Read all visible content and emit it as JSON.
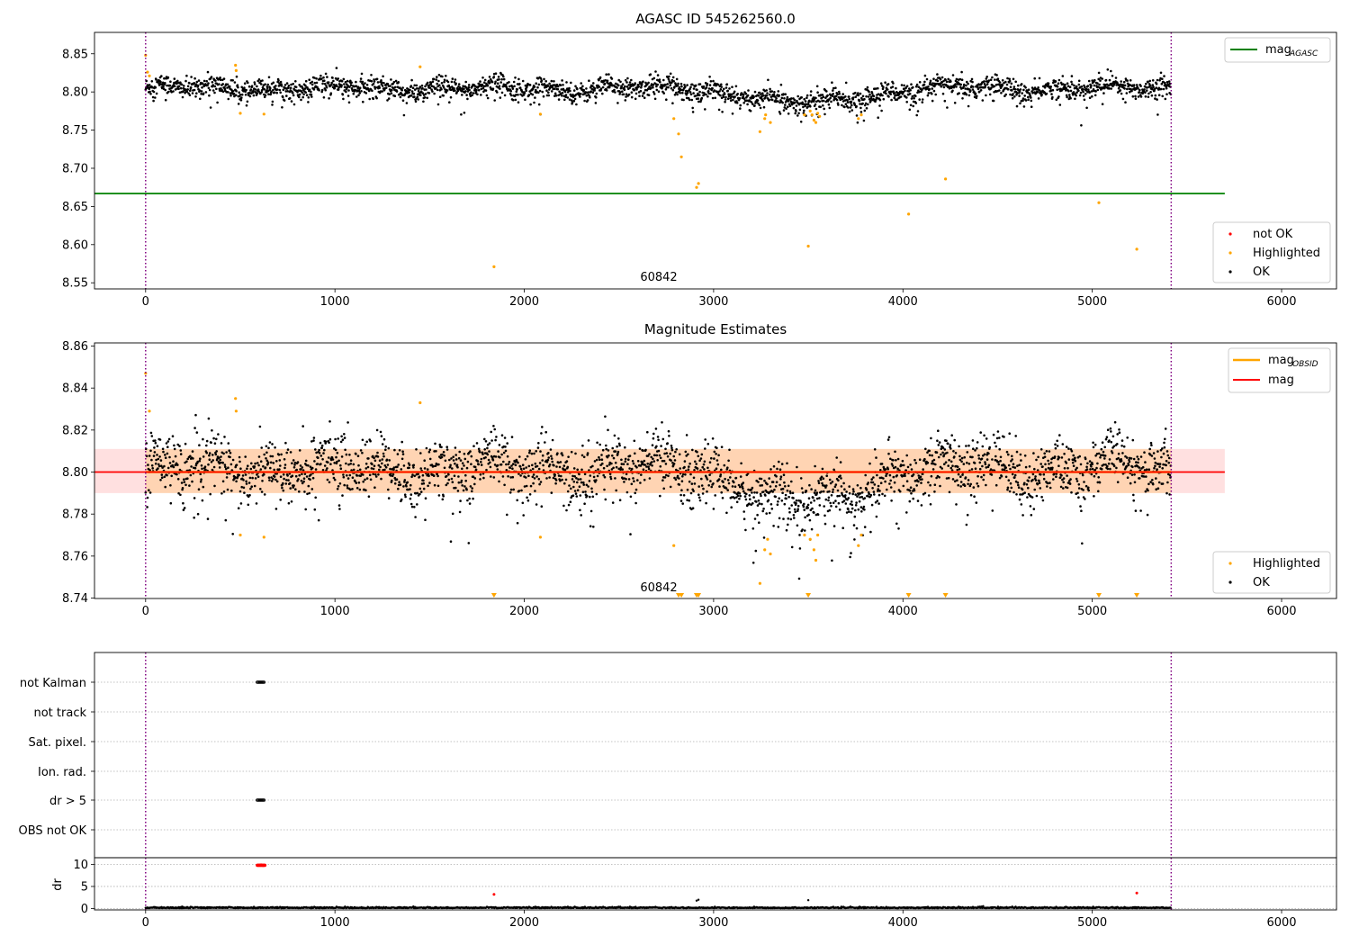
{
  "chart_data": [
    {
      "type": "scatter",
      "title": "AGASC ID 545262560.0",
      "xlim": [
        -270,
        6290
      ],
      "ylim": [
        8.542,
        8.878
      ],
      "x_ticks": [
        0,
        1000,
        2000,
        3000,
        4000,
        5000,
        6000
      ],
      "y_ticks": [
        8.55,
        8.6,
        8.65,
        8.7,
        8.75,
        8.8,
        8.85
      ],
      "y_tick_labels": [
        "8.55",
        "8.60",
        "8.65",
        "8.70",
        "8.75",
        "8.80",
        "8.85"
      ],
      "vlines": [
        0,
        5417
      ],
      "annotation": "60842",
      "annotation_x": 2700,
      "hline": {
        "y": 8.667,
        "color": "#008000"
      },
      "legend_upper": {
        "name": "mag",
        "subscript": "AGASC",
        "color": "#008000"
      },
      "legend_lower": [
        {
          "name": "not OK",
          "color": "#ff0000"
        },
        {
          "name": "Highlighted",
          "color": "#ffa500"
        },
        {
          "name": "OK",
          "color": "#000000"
        }
      ],
      "ok_band": {
        "x_range": [
          0,
          5417
        ],
        "base": 8.805,
        "dips": [
          [
            3500,
            0.02,
            350
          ]
        ]
      },
      "highlighted_points": [
        [
          0,
          8.848
        ],
        [
          10,
          8.826
        ],
        [
          20,
          8.821
        ],
        [
          475,
          8.835
        ],
        [
          478,
          8.828
        ],
        [
          500,
          8.772
        ],
        [
          625,
          8.771
        ],
        [
          1450,
          8.833
        ],
        [
          1840,
          8.571
        ],
        [
          2085,
          8.771
        ],
        [
          2790,
          8.765
        ],
        [
          2815,
          8.745
        ],
        [
          2830,
          8.715
        ],
        [
          2910,
          8.675
        ],
        [
          2920,
          8.68
        ],
        [
          3245,
          8.748
        ],
        [
          3270,
          8.765
        ],
        [
          3275,
          8.77
        ],
        [
          3300,
          8.76
        ],
        [
          3480,
          8.77
        ],
        [
          3500,
          8.598
        ],
        [
          3510,
          8.775
        ],
        [
          3520,
          8.77
        ],
        [
          3530,
          8.763
        ],
        [
          3540,
          8.76
        ],
        [
          3550,
          8.772
        ],
        [
          3560,
          8.768
        ],
        [
          3765,
          8.765
        ],
        [
          3780,
          8.77
        ],
        [
          4030,
          8.64
        ],
        [
          4225,
          8.686
        ],
        [
          5035,
          8.655
        ],
        [
          5235,
          8.594
        ]
      ]
    },
    {
      "type": "scatter",
      "title": "Magnitude Estimates",
      "xlim": [
        -270,
        6290
      ],
      "ylim": [
        8.7398,
        8.8615
      ],
      "x_ticks": [
        0,
        1000,
        2000,
        3000,
        4000,
        5000,
        6000
      ],
      "y_ticks": [
        8.74,
        8.76,
        8.78,
        8.8,
        8.82,
        8.84,
        8.86
      ],
      "y_tick_labels": [
        "8.74",
        "8.76",
        "8.78",
        "8.80",
        "8.82",
        "8.84",
        "8.86"
      ],
      "vlines": [
        0,
        5417
      ],
      "annotation": "60842",
      "annotation_x": 2700,
      "hline": {
        "y": 8.8,
        "color": "#ff0000"
      },
      "mag_obsid_line": {
        "y": 8.8,
        "x_range": [
          0,
          5417
        ],
        "color": "#ffa500"
      },
      "band": {
        "y_range": [
          8.79,
          8.811
        ],
        "x_range": [
          -270,
          5700
        ],
        "color": "#ff0000"
      },
      "band_obsid": {
        "y_range": [
          8.79,
          8.811
        ],
        "x_range": [
          0,
          5417
        ],
        "color": "#ffa500"
      },
      "legend_upper": [
        {
          "name": "mag",
          "subscript": "OBSID",
          "color": "#ffa500"
        },
        {
          "name": "mag",
          "subscript": "",
          "color": "#ff0000"
        }
      ],
      "legend_lower": [
        {
          "name": "Highlighted",
          "color": "#ffa500"
        },
        {
          "name": "OK",
          "color": "#000000"
        }
      ],
      "ok_band": {
        "x_range": [
          0,
          5417
        ],
        "base": 8.802,
        "dips": [
          [
            3500,
            0.018,
            350
          ]
        ]
      },
      "highlighted_points": [
        [
          0,
          8.847
        ],
        [
          20,
          8.829
        ],
        [
          475,
          8.835
        ],
        [
          478,
          8.829
        ],
        [
          500,
          8.77
        ],
        [
          625,
          8.769
        ],
        [
          1450,
          8.833
        ],
        [
          2085,
          8.769
        ],
        [
          2790,
          8.765
        ],
        [
          3245,
          8.747
        ],
        [
          3270,
          8.763
        ],
        [
          3285,
          8.768
        ],
        [
          3300,
          8.761
        ],
        [
          3480,
          8.77
        ],
        [
          3510,
          8.768
        ],
        [
          3530,
          8.763
        ],
        [
          3540,
          8.758
        ],
        [
          3550,
          8.77
        ],
        [
          3765,
          8.765
        ],
        [
          3780,
          8.77
        ]
      ],
      "clipped_points_x": [
        1840,
        2815,
        2830,
        2910,
        2920,
        3500,
        4030,
        4225,
        5035,
        5235
      ]
    },
    {
      "type": "scatter",
      "title": "",
      "xlim": [
        -270,
        6290
      ],
      "x_ticks": [
        0,
        1000,
        2000,
        3000,
        4000,
        5000,
        6000
      ],
      "vlines": [
        0,
        5417
      ],
      "categories": [
        "not Kalman",
        "not track",
        "Sat. pixel.",
        "Ion. rad.",
        "dr > 5",
        "OBS not OK"
      ],
      "flag_points": [
        {
          "category": "not Kalman",
          "x_range": [
            590,
            625
          ]
        },
        {
          "category": "dr > 5",
          "x_range": [
            590,
            625
          ]
        }
      ]
    },
    {
      "type": "scatter",
      "title": "",
      "xlim": [
        -270,
        6290
      ],
      "ylim": [
        -0.3,
        11.5
      ],
      "ylabel": "dr",
      "y_ticks": [
        0,
        5,
        10
      ],
      "y_tick_labels": [
        "0",
        "5",
        "10"
      ],
      "x_ticks": [
        0,
        1000,
        2000,
        3000,
        4000,
        5000,
        6000
      ],
      "vlines": [
        0,
        5417
      ],
      "notok_points": [
        [
          600,
          9.8
        ],
        [
          610,
          9.9
        ],
        [
          620,
          9.7
        ],
        [
          605,
          9.85
        ],
        [
          1840,
          3.2
        ],
        [
          5235,
          3.5
        ]
      ],
      "outlier_points": [
        [
          2910,
          1.8
        ],
        [
          2920,
          2.0
        ],
        [
          3500,
          1.9
        ]
      ]
    }
  ]
}
